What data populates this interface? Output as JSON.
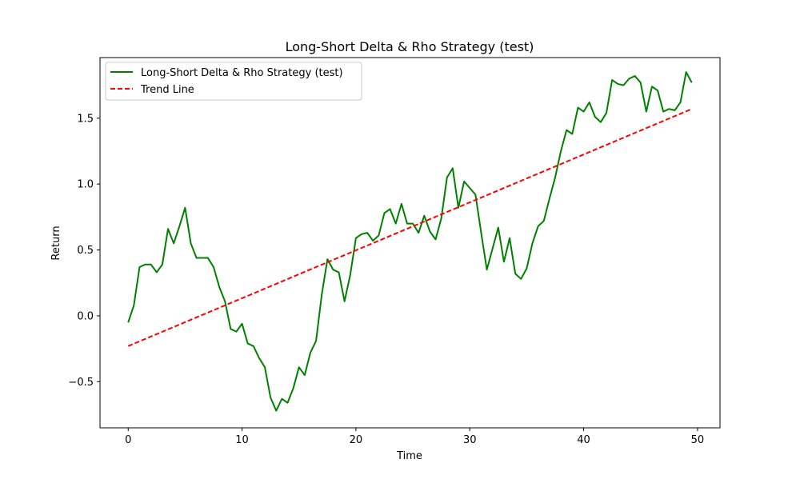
{
  "chart_data": {
    "type": "line",
    "title": "Long-Short Delta & Rho Strategy (test)",
    "xlabel": "Time",
    "ylabel": "Return",
    "xlim": [
      -2.475,
      51.975
    ],
    "ylim": [
      -0.85,
      1.96
    ],
    "xticks": [
      0,
      10,
      20,
      30,
      40,
      50
    ],
    "yticks": [
      -0.5,
      0.0,
      0.5,
      1.0,
      1.5
    ],
    "xtick_labels": [
      "0",
      "10",
      "20",
      "30",
      "40",
      "50"
    ],
    "ytick_labels": [
      "−0.5",
      "0.0",
      "0.5",
      "1.0",
      "1.5"
    ],
    "legend_position": "top-left",
    "grid": false,
    "series": [
      {
        "name": "Long-Short Delta & Rho Strategy (test)",
        "color": "#008000",
        "style": "solid",
        "x": [
          0,
          0.5,
          1,
          1.5,
          2,
          2.5,
          3,
          3.5,
          4,
          4.5,
          5,
          5.5,
          6,
          6.5,
          7,
          7.5,
          8,
          8.5,
          9,
          9.5,
          10,
          10.5,
          11,
          11.5,
          12,
          12.5,
          13,
          13.5,
          14,
          14.5,
          15,
          15.5,
          16,
          16.5,
          17,
          17.5,
          18,
          18.5,
          19,
          19.5,
          20,
          20.5,
          21,
          21.5,
          22,
          22.5,
          23,
          23.5,
          24,
          24.5,
          25,
          25.5,
          26,
          26.5,
          27,
          27.5,
          28,
          28.5,
          29,
          29.5,
          30,
          30.5,
          31,
          31.5,
          32,
          32.5,
          33,
          33.5,
          34,
          34.5,
          35,
          35.5,
          36,
          36.5,
          37,
          37.5,
          38,
          38.5,
          39,
          39.5,
          40,
          40.5,
          41,
          41.5,
          42,
          42.5,
          43,
          43.5,
          44,
          44.5,
          45,
          45.5,
          46,
          46.5,
          47,
          47.5,
          48,
          48.5,
          49,
          49.5
        ],
        "values": [
          -0.05,
          0.08,
          0.37,
          0.39,
          0.39,
          0.33,
          0.39,
          0.66,
          0.55,
          0.68,
          0.82,
          0.55,
          0.44,
          0.44,
          0.44,
          0.37,
          0.22,
          0.11,
          -0.1,
          -0.12,
          -0.06,
          -0.21,
          -0.23,
          -0.32,
          -0.39,
          -0.62,
          -0.72,
          -0.63,
          -0.66,
          -0.55,
          -0.39,
          -0.45,
          -0.28,
          -0.19,
          0.16,
          0.43,
          0.35,
          0.33,
          0.11,
          0.31,
          0.59,
          0.62,
          0.63,
          0.57,
          0.61,
          0.78,
          0.81,
          0.7,
          0.85,
          0.7,
          0.7,
          0.63,
          0.76,
          0.64,
          0.58,
          0.74,
          1.05,
          1.12,
          0.82,
          1.02,
          0.97,
          0.92,
          0.63,
          0.35,
          0.51,
          0.67,
          0.41,
          0.59,
          0.32,
          0.28,
          0.36,
          0.55,
          0.68,
          0.72,
          0.89,
          1.05,
          1.25,
          1.41,
          1.38,
          1.58,
          1.55,
          1.62,
          1.51,
          1.47,
          1.54,
          1.79,
          1.76,
          1.75,
          1.8,
          1.82,
          1.77,
          1.55,
          1.74,
          1.71,
          1.55,
          1.57,
          1.56,
          1.62,
          1.85,
          1.77
        ]
      },
      {
        "name": "Trend Line",
        "color": "#ff0000",
        "style": "dashed",
        "x": [
          0,
          49.5
        ],
        "values": [
          -0.23,
          1.57
        ]
      }
    ]
  }
}
